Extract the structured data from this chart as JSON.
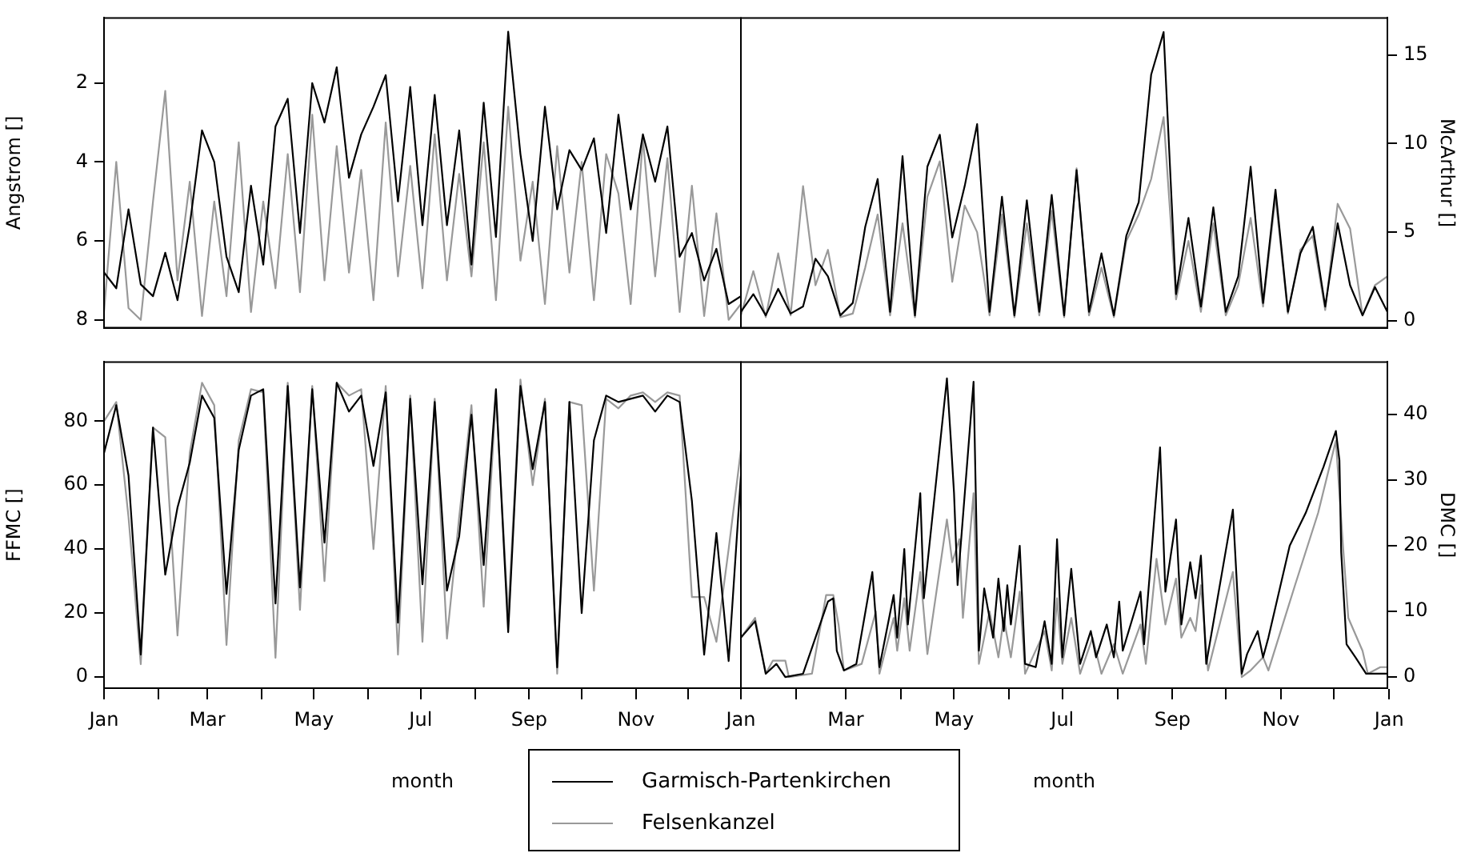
{
  "chart_data": [
    {
      "type": "line",
      "ylabel": "Angstrom []",
      "ylim": [
        8.2,
        0.35
      ],
      "yticks": [
        2,
        4,
        6,
        8
      ],
      "xlim": [
        "--01-01",
        "--12-31"
      ],
      "tick_labels": "y",
      "grid": false,
      "x": [
        "--01-01",
        "--01-08",
        "--01-15",
        "--01-22",
        "--01-29",
        "--02-05",
        "--02-12",
        "--02-19",
        "--02-26",
        "--03-05",
        "--03-12",
        "--03-19",
        "--03-26",
        "--04-02",
        "--04-09",
        "--04-16",
        "--04-23",
        "--04-30",
        "--05-07",
        "--05-14",
        "--05-21",
        "--05-28",
        "--06-04",
        "--06-11",
        "--06-18",
        "--06-25",
        "--07-02",
        "--07-09",
        "--07-16",
        "--07-23",
        "--07-30",
        "--08-06",
        "--08-13",
        "--08-20",
        "--08-27",
        "--09-03",
        "--09-10",
        "--09-17",
        "--09-24",
        "--10-01",
        "--10-08",
        "--10-15",
        "--10-22",
        "--10-29",
        "--11-05",
        "--11-12",
        "--11-19",
        "--11-26",
        "--12-03",
        "--12-10",
        "--12-17",
        "--12-24",
        "--12-31"
      ],
      "series": [
        {
          "color": "#000000",
          "values": [
            6.8,
            7.2,
            5.2,
            7.1,
            7.4,
            6.3,
            7.5,
            5.6,
            3.2,
            4.0,
            6.4,
            7.3,
            4.6,
            6.6,
            3.1,
            2.4,
            5.8,
            2.0,
            3.0,
            1.6,
            4.4,
            3.3,
            2.6,
            1.8,
            5.0,
            2.1,
            5.6,
            2.3,
            5.6,
            3.2,
            6.6,
            2.5,
            5.9,
            0.7,
            3.8,
            6.0,
            2.6,
            5.2,
            3.7,
            4.2,
            3.4,
            5.8,
            2.8,
            5.2,
            3.3,
            4.5,
            3.1,
            6.4,
            5.8,
            7.0,
            6.2,
            7.6,
            7.4
          ]
        },
        {
          "color": "#999999",
          "values": [
            7.8,
            4.0,
            7.7,
            8.0,
            5.0,
            2.2,
            7.0,
            4.5,
            7.9,
            5.0,
            7.4,
            3.5,
            7.8,
            5.0,
            7.2,
            3.8,
            7.3,
            2.8,
            7.0,
            3.6,
            6.8,
            4.2,
            7.5,
            3.0,
            6.9,
            4.1,
            7.2,
            3.3,
            7.0,
            4.3,
            6.9,
            3.5,
            7.5,
            2.6,
            6.5,
            4.5,
            7.6,
            3.6,
            6.8,
            4.0,
            7.5,
            3.8,
            4.8,
            7.6,
            3.4,
            6.9,
            3.9,
            7.8,
            4.6,
            7.9,
            5.3,
            8.0,
            7.6
          ]
        }
      ]
    },
    {
      "type": "line",
      "y2label": "McArthur []",
      "y2lim": [
        -0.4,
        17.1
      ],
      "y2ticks": [
        0,
        5,
        10,
        15
      ],
      "xlim": [
        "--01-01",
        "--12-31"
      ],
      "tick_labels": "y",
      "grid": false,
      "x": [
        "--01-01",
        "--01-08",
        "--01-15",
        "--01-22",
        "--01-29",
        "--02-05",
        "--02-12",
        "--02-19",
        "--02-26",
        "--03-05",
        "--03-12",
        "--03-19",
        "--03-26",
        "--04-02",
        "--04-09",
        "--04-16",
        "--04-23",
        "--04-30",
        "--05-07",
        "--05-14",
        "--05-21",
        "--05-28",
        "--06-04",
        "--06-11",
        "--06-18",
        "--06-25",
        "--07-02",
        "--07-09",
        "--07-16",
        "--07-23",
        "--07-30",
        "--08-06",
        "--08-13",
        "--08-20",
        "--08-27",
        "--09-03",
        "--09-10",
        "--09-17",
        "--09-24",
        "--10-01",
        "--10-08",
        "--10-15",
        "--10-22",
        "--10-29",
        "--11-05",
        "--11-12",
        "--11-19",
        "--11-26",
        "--12-03",
        "--12-10",
        "--12-17",
        "--12-24",
        "--12-31"
      ],
      "series": [
        {
          "color": "#000000",
          "axis": "y2",
          "values": [
            0.5,
            1.5,
            0.3,
            1.8,
            0.4,
            0.8,
            3.5,
            2.5,
            0.3,
            1.0,
            5.3,
            8.0,
            0.5,
            9.3,
            0.3,
            8.7,
            10.5,
            4.7,
            7.6,
            11.1,
            0.5,
            7.0,
            0.3,
            6.8,
            0.5,
            7.1,
            0.3,
            8.5,
            0.5,
            3.8,
            0.3,
            4.8,
            6.7,
            13.9,
            16.3,
            1.5,
            5.8,
            0.8,
            6.4,
            0.5,
            2.5,
            8.7,
            1.0,
            7.4,
            0.5,
            3.8,
            5.3,
            0.8,
            5.5,
            2.0,
            0.3,
            1.9,
            0.5
          ]
        },
        {
          "color": "#999999",
          "axis": "y2",
          "values": [
            0.3,
            2.8,
            0.2,
            3.8,
            0.3,
            7.6,
            2.0,
            4.0,
            0.2,
            0.4,
            3.0,
            6.0,
            0.3,
            5.5,
            0.2,
            7.0,
            9.0,
            2.2,
            6.5,
            5.0,
            0.3,
            6.0,
            0.2,
            5.5,
            0.3,
            6.2,
            0.2,
            8.6,
            0.3,
            3.0,
            0.2,
            4.5,
            6.0,
            8.0,
            11.5,
            1.2,
            4.5,
            0.5,
            5.5,
            0.3,
            2.0,
            5.8,
            0.8,
            7.0,
            0.4,
            4.0,
            4.8,
            0.6,
            6.6,
            5.2,
            0.3,
            2.0,
            2.5
          ]
        }
      ]
    },
    {
      "type": "line",
      "xlabel": "month",
      "ylabel": "FFMC []",
      "ylim": [
        -3.5,
        98.5
      ],
      "yticks": [
        0,
        20,
        40,
        60,
        80
      ],
      "xlim": [
        "--01-01",
        "--12-31"
      ],
      "xticks": [
        {
          "value": "--01-01",
          "label": "Jan"
        },
        {
          "value": "--02-01",
          "label": null
        },
        {
          "value": "--03-01",
          "label": "Mar"
        },
        {
          "value": "--04-01",
          "label": null
        },
        {
          "value": "--05-01",
          "label": "May"
        },
        {
          "value": "--06-01",
          "label": null
        },
        {
          "value": "--07-01",
          "label": "Jul"
        },
        {
          "value": "--08-01",
          "label": null
        },
        {
          "value": "--09-01",
          "label": "Sep"
        },
        {
          "value": "--10-01",
          "label": null
        },
        {
          "value": "--11-01",
          "label": "Nov"
        },
        {
          "value": "--12-01",
          "label": null
        }
      ],
      "grid": false,
      "legend": "bottom",
      "x": [
        "--01-01",
        "--01-08",
        "--01-15",
        "--01-22",
        "--01-29",
        "--02-05",
        "--02-12",
        "--02-19",
        "--02-26",
        "--03-05",
        "--03-12",
        "--03-19",
        "--03-26",
        "--04-02",
        "--04-09",
        "--04-16",
        "--04-23",
        "--04-30",
        "--05-07",
        "--05-14",
        "--05-21",
        "--05-28",
        "--06-04",
        "--06-11",
        "--06-18",
        "--06-25",
        "--07-02",
        "--07-09",
        "--07-16",
        "--07-23",
        "--07-30",
        "--08-06",
        "--08-13",
        "--08-20",
        "--08-27",
        "--09-03",
        "--09-10",
        "--09-17",
        "--09-24",
        "--10-01",
        "--10-08",
        "--10-15",
        "--10-22",
        "--10-29",
        "--11-05",
        "--11-12",
        "--11-19",
        "--11-26",
        "--12-03",
        "--12-10",
        "--12-17",
        "--12-24",
        "--12-31"
      ],
      "series": [
        {
          "name": "Garmisch-Partenkirchen",
          "color": "#000000",
          "values": [
            70,
            85,
            63,
            7,
            78,
            32,
            53,
            67,
            88,
            81,
            26,
            71,
            88,
            90,
            23,
            91,
            28,
            90,
            42,
            92,
            83,
            88,
            66,
            89,
            17,
            87,
            29,
            86,
            27,
            44,
            82,
            35,
            90,
            14,
            91,
            65,
            86,
            3,
            86,
            20,
            74,
            88,
            86,
            87,
            88,
            83,
            88,
            86,
            55,
            7,
            45,
            5,
            63
          ]
        },
        {
          "name": "Felsenkanzel",
          "color": "#999999",
          "values": [
            80,
            86,
            50,
            4,
            78,
            75,
            13,
            70,
            92,
            85,
            10,
            74,
            90,
            89,
            6,
            92,
            21,
            91,
            30,
            92,
            88,
            90,
            40,
            91,
            7,
            88,
            11,
            87,
            12,
            50,
            85,
            22,
            88,
            19,
            93,
            60,
            87,
            1,
            86,
            85,
            27,
            87,
            84,
            88,
            89,
            86,
            89,
            88,
            25,
            25,
            11,
            40,
            71
          ]
        }
      ]
    },
    {
      "type": "line",
      "xlabel": "month",
      "y2label": "DMC []",
      "y2lim": [
        -1.7,
        48
      ],
      "y2ticks": [
        0,
        10,
        20,
        30,
        40
      ],
      "xlim": [
        "--01-01",
        "--12-31"
      ],
      "xticks": [
        {
          "value": "--01-01",
          "label": "Jan"
        },
        {
          "value": "--02-01",
          "label": null
        },
        {
          "value": "--03-01",
          "label": "Mar"
        },
        {
          "value": "--04-01",
          "label": null
        },
        {
          "value": "--05-01",
          "label": "May"
        },
        {
          "value": "--06-01",
          "label": null
        },
        {
          "value": "--07-01",
          "label": "Jul"
        },
        {
          "value": "--08-01",
          "label": null
        },
        {
          "value": "--09-01",
          "label": "Sep"
        },
        {
          "value": "--10-01",
          "label": null
        },
        {
          "value": "--11-01",
          "label": "Nov"
        },
        {
          "value": "--12-01",
          "label": null
        },
        {
          "value": "--12-31T24:00",
          "label": "Jan"
        }
      ],
      "grid": false,
      "series": [
        {
          "color": "#000000",
          "axis": "y2",
          "x": [
            "--01-01",
            "--01-09",
            "--01-15",
            "--01-21",
            "--01-26",
            "--02-05",
            "--02-19",
            "--02-22",
            "--02-24",
            "--02-28",
            "--03-07",
            "--03-16",
            "--03-20",
            "--03-28",
            "--03-30",
            "--04-03",
            "--04-05",
            "--04-12",
            "--04-14",
            "--04-27",
            "--04-29",
            "--05-01",
            "--05-03",
            "--05-12",
            "--05-15",
            "--05-18",
            "--05-23",
            "--05-26",
            "--05-29",
            "--05-31",
            "--06-02",
            "--06-07",
            "--06-10",
            "--06-16",
            "--06-21",
            "--06-25",
            "--06-28",
            "--07-01",
            "--07-06",
            "--07-11",
            "--07-17",
            "--07-20",
            "--07-26",
            "--07-30",
            "--08-02",
            "--08-04",
            "--08-14",
            "--08-16",
            "--08-25",
            "--08-28",
            "--09-03",
            "--09-06",
            "--09-11",
            "--09-14",
            "--09-17",
            "--09-20",
            "--10-05",
            "--10-10",
            "--10-13",
            "--10-19",
            "--10-22",
            "--10-25",
            "--11-06",
            "--11-15",
            "--11-25",
            "--12-02",
            "--12-04",
            "--12-05",
            "--12-08",
            "--12-13",
            "--12-19",
            "--12-31"
          ],
          "values": [
            6,
            8.5,
            0.5,
            2,
            0,
            0.5,
            11.5,
            12,
            4,
            1,
            2,
            16,
            1.5,
            12.5,
            6,
            19.5,
            8,
            28,
            12,
            45.5,
            37,
            28,
            14,
            45,
            4,
            13.5,
            6,
            15,
            7,
            14,
            8,
            20,
            2,
            1.5,
            8.5,
            2,
            21,
            3,
            16.5,
            2,
            7,
            3,
            8,
            3,
            11.5,
            4,
            13,
            5,
            35,
            13,
            24,
            8,
            17.5,
            12,
            18.5,
            2,
            25.5,
            0.5,
            3.5,
            7,
            3,
            6,
            20,
            25,
            32,
            37.5,
            33,
            19,
            5,
            3,
            0.5,
            0.5
          ]
        },
        {
          "color": "#999999",
          "axis": "y2",
          "x": [
            "--01-01",
            "--01-09",
            "--01-15",
            "--01-19",
            "--01-26",
            "--01-28",
            "--02-10",
            "--02-18",
            "--02-22",
            "--02-25",
            "--02-28",
            "--03-10",
            "--03-18",
            "--03-20",
            "--03-28",
            "--03-30",
            "--04-03",
            "--04-06",
            "--04-12",
            "--04-16",
            "--04-27",
            "--04-30",
            "--05-04",
            "--05-06",
            "--05-12",
            "--05-15",
            "--05-21",
            "--05-26",
            "--05-29",
            "--06-02",
            "--06-07",
            "--06-10",
            "--06-21",
            "--06-25",
            "--06-28",
            "--07-01",
            "--07-06",
            "--07-11",
            "--07-18",
            "--07-23",
            "--07-30",
            "--08-04",
            "--08-14",
            "--08-17",
            "--08-23",
            "--08-28",
            "--09-03",
            "--09-06",
            "--09-11",
            "--09-14",
            "--09-17",
            "--09-21",
            "--10-05",
            "--10-10",
            "--10-15",
            "--10-22",
            "--10-25",
            "--11-09",
            "--11-22",
            "--12-02",
            "--12-06",
            "--12-09",
            "--12-17",
            "--12-20",
            "--12-27",
            "--12-31"
          ],
          "values": [
            6,
            9,
            0.5,
            2.5,
            2.5,
            0,
            0.5,
            12.5,
            12.5,
            8,
            1,
            2,
            10,
            0.5,
            9,
            4,
            12,
            4,
            16,
            3.5,
            24,
            17.5,
            21,
            9,
            28,
            2,
            10,
            3,
            9,
            3,
            13,
            0.5,
            7,
            1,
            12,
            2,
            9,
            0.5,
            6,
            0.5,
            5,
            0.5,
            8,
            2,
            18,
            8,
            15,
            6,
            9,
            7,
            14,
            1,
            16,
            0,
            1,
            3,
            1,
            14,
            25,
            36,
            20,
            9,
            4,
            0.5,
            1.5,
            1.5
          ]
        }
      ]
    }
  ]
}
